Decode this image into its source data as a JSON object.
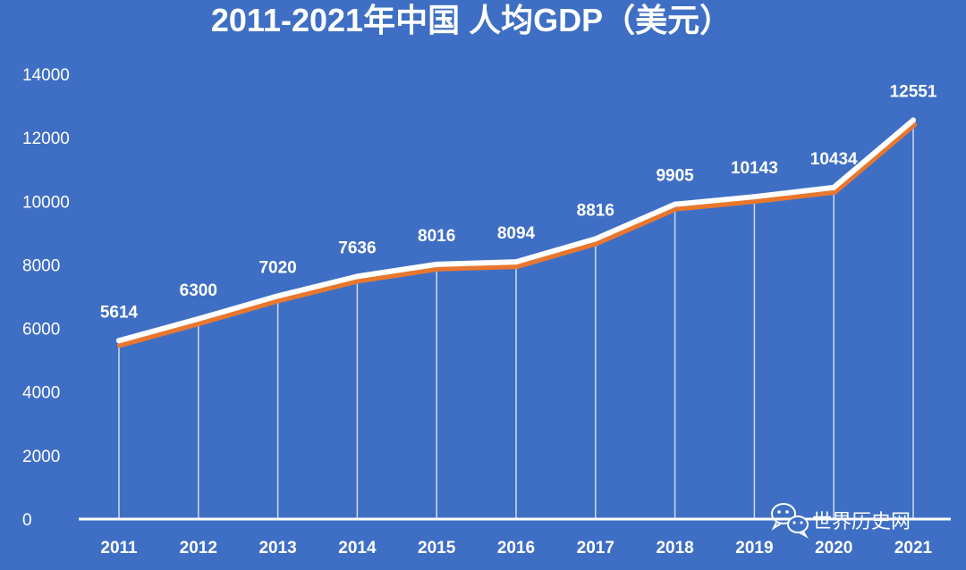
{
  "chart_data": {
    "type": "line",
    "title": "2011-2021年中国 人均GDP（美元）",
    "xlabel": "",
    "ylabel": "",
    "categories": [
      "2011",
      "2012",
      "2013",
      "2014",
      "2015",
      "2016",
      "2017",
      "2018",
      "2019",
      "2020",
      "2021"
    ],
    "series": [
      {
        "name": "人均GDP（美元）",
        "values": [
          5614,
          6300,
          7020,
          7636,
          8016,
          8094,
          8816,
          9905,
          10143,
          10434,
          12551
        ]
      }
    ],
    "ylim": [
      0,
      14000
    ],
    "yticks": [
      "0",
      "2000",
      "4000",
      "6000",
      "8000",
      "10000",
      "12000",
      "14000"
    ],
    "data_labels": [
      "5614",
      "6300",
      "7020",
      "7636",
      "8016",
      "8094",
      "8816",
      "9905",
      "10143",
      "10434",
      "12551"
    ],
    "grid": false,
    "legend": "none"
  },
  "watermark": {
    "text": "世界历史网",
    "icon": "wechat-icon"
  },
  "colors": {
    "background": "#3f6fc4",
    "line": "#ffffff",
    "line_shadow": "#e8772e",
    "text": "#ffffff"
  }
}
